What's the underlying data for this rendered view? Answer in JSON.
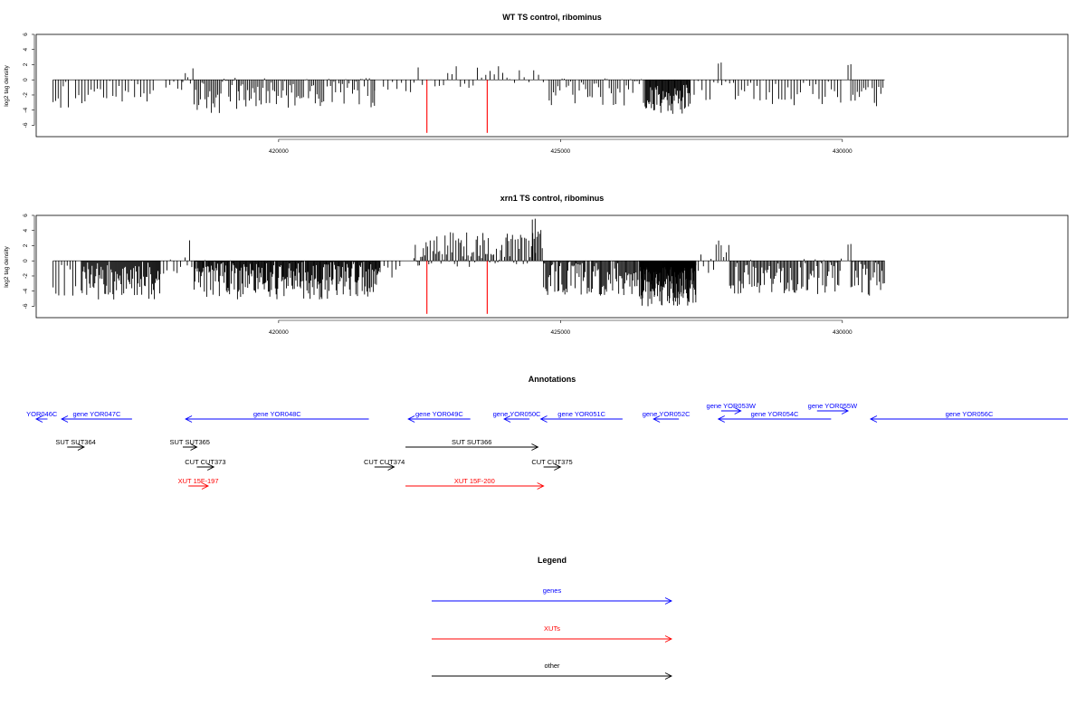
{
  "chart_data": [
    {
      "type": "bar",
      "title": "WT TS control, ribominus",
      "ylabel": "log2 tag density",
      "xlabel": "",
      "ylim": [
        -7.5,
        6
      ],
      "yticks": [
        -6,
        -4,
        -2,
        0,
        2,
        4,
        6
      ],
      "xlim": [
        415700,
        434000
      ],
      "xticks": [
        420000,
        425000,
        430000
      ],
      "baseline": [
        416000,
        430750
      ],
      "highlight_color": "#ff0000",
      "highlight_bars": [
        [
          422630,
          -7.0
        ],
        [
          423700,
          -7.0
        ]
      ],
      "regions": [
        {
          "x": [
            416000,
            416300
          ],
          "mean": -1.8,
          "amp": 2.2,
          "step": 45,
          "seed": 11
        },
        {
          "x": [
            416400,
            417800
          ],
          "mean": -1.6,
          "amp": 1.6,
          "step": 55,
          "seed": 12
        },
        {
          "x": [
            418000,
            418300
          ],
          "mean": -0.6,
          "amp": 0.8,
          "step": 70,
          "seed": 13
        },
        {
          "x": [
            418300,
            418500
          ],
          "mean": 0.7,
          "amp": 1.9,
          "step": 45,
          "seed": 14
        },
        {
          "x": [
            418500,
            419300
          ],
          "mean": -2.0,
          "amp": 2.4,
          "step": 28,
          "seed": 15
        },
        {
          "x": [
            419300,
            421700
          ],
          "mean": -1.7,
          "amp": 2.0,
          "step": 30,
          "seed": 16
        },
        {
          "x": [
            421700,
            422400
          ],
          "mean": -0.8,
          "amp": 1.2,
          "step": 80,
          "seed": 17
        },
        {
          "x": [
            422400,
            424100
          ],
          "mean": 0.4,
          "amp": 1.5,
          "step": 75,
          "seed": 18
        },
        {
          "x": [
            424100,
            424800
          ],
          "mean": 0.6,
          "amp": 1.0,
          "step": 85,
          "seed": 19
        },
        {
          "x": [
            424800,
            426500
          ],
          "mean": -1.7,
          "amp": 2.0,
          "step": 38,
          "seed": 20
        },
        {
          "x": [
            426500,
            427300
          ],
          "mean": -2.5,
          "amp": 2.0,
          "step": 14,
          "seed": 21
        },
        {
          "x": [
            427300,
            428100
          ],
          "mean": -1.3,
          "amp": 1.5,
          "step": 70,
          "seed": 22
        },
        {
          "x": [
            427800,
            427850
          ],
          "mean": 2.2,
          "amp": 0.1,
          "step": 50,
          "seed": 29
        },
        {
          "x": [
            428100,
            430000
          ],
          "mean": -1.6,
          "amp": 1.9,
          "step": 55,
          "seed": 23
        },
        {
          "x": [
            430100,
            430150
          ],
          "mean": 2.0,
          "amp": 0.1,
          "step": 50,
          "seed": 28
        },
        {
          "x": [
            430150,
            430750
          ],
          "mean": -1.8,
          "amp": 1.9,
          "step": 38,
          "seed": 24
        }
      ]
    },
    {
      "type": "bar",
      "title": "xrn1 TS control, ribominus",
      "ylabel": "log2 tag density",
      "xlabel": "",
      "ylim": [
        -7.5,
        6
      ],
      "yticks": [
        -6,
        -4,
        -2,
        0,
        2,
        4,
        6
      ],
      "xlim": [
        415700,
        434000
      ],
      "xticks": [
        420000,
        425000,
        430000
      ],
      "baseline": [
        416000,
        430750
      ],
      "highlight_color": "#ff0000",
      "highlight_bars": [
        [
          422630,
          -7.0
        ],
        [
          423700,
          -7.0
        ]
      ],
      "regions": [
        {
          "x": [
            416000,
            416400
          ],
          "mean": -2.2,
          "amp": 2.6,
          "step": 50,
          "seed": 31
        },
        {
          "x": [
            416500,
            417900
          ],
          "mean": -2.6,
          "amp": 2.6,
          "step": 16,
          "seed": 32
        },
        {
          "x": [
            417900,
            418300
          ],
          "mean": -1.0,
          "amp": 1.5,
          "step": 60,
          "seed": 33
        },
        {
          "x": [
            418300,
            418500
          ],
          "mean": 1.0,
          "amp": 2.0,
          "step": 40,
          "seed": 34
        },
        {
          "x": [
            418500,
            421800
          ],
          "mean": -2.5,
          "amp": 2.6,
          "step": 14,
          "seed": 35
        },
        {
          "x": [
            421800,
            422200
          ],
          "mean": -0.8,
          "amp": 1.4,
          "step": 70,
          "seed": 36
        },
        {
          "x": [
            422400,
            424100
          ],
          "mean": 1.5,
          "amp": 2.3,
          "step": 24,
          "seed": 37
        },
        {
          "x": [
            424100,
            424700
          ],
          "mean": 1.8,
          "amp": 2.4,
          "step": 24,
          "seed": 38
        },
        {
          "x": [
            424500,
            424550
          ],
          "mean": 5.5,
          "amp": 0.1,
          "step": 50,
          "seed": 39
        },
        {
          "x": [
            424700,
            426400
          ],
          "mean": -2.3,
          "amp": 2.4,
          "step": 18,
          "seed": 40
        },
        {
          "x": [
            426400,
            427400
          ],
          "mean": -3.4,
          "amp": 2.6,
          "step": 8,
          "seed": 41
        },
        {
          "x": [
            427400,
            428000
          ],
          "mean": 0.5,
          "amp": 2.2,
          "step": 45,
          "seed": 42
        },
        {
          "x": [
            428000,
            430000
          ],
          "mean": -2.1,
          "amp": 2.4,
          "step": 22,
          "seed": 43
        },
        {
          "x": [
            430100,
            430150
          ],
          "mean": 2.2,
          "amp": 0.1,
          "step": 50,
          "seed": 48
        },
        {
          "x": [
            430150,
            430750
          ],
          "mean": -2.3,
          "amp": 2.4,
          "step": 22,
          "seed": 44
        }
      ]
    }
  ],
  "annotations": {
    "title": "Annotations",
    "features": [
      {
        "label": "YOR046C",
        "color": "#0000ff",
        "from": 415700,
        "to": 415900,
        "dir": "left",
        "row": 1
      },
      {
        "label": "gene YOR047C",
        "color": "#0000ff",
        "from": 416150,
        "to": 417400,
        "dir": "left",
        "row": 1
      },
      {
        "label": "gene YOR048C",
        "color": "#0000ff",
        "from": 418350,
        "to": 421600,
        "dir": "left",
        "row": 1
      },
      {
        "label": "gene YOR049C",
        "color": "#0000ff",
        "from": 422300,
        "to": 423400,
        "dir": "left",
        "row": 1
      },
      {
        "label": "gene YOR050C",
        "color": "#0000ff",
        "from": 424000,
        "to": 424450,
        "dir": "left",
        "row": 1
      },
      {
        "label": "gene YOR051C",
        "color": "#0000ff",
        "from": 424650,
        "to": 426100,
        "dir": "left",
        "row": 1
      },
      {
        "label": "gene YOR052C",
        "color": "#0000ff",
        "from": 426650,
        "to": 427100,
        "dir": "left",
        "row": 1
      },
      {
        "label": "gene YOR053W",
        "color": "#0000ff",
        "from": 427850,
        "to": 428200,
        "dir": "right",
        "row": 0
      },
      {
        "label": "gene YOR054C",
        "color": "#0000ff",
        "from": 427800,
        "to": 429800,
        "dir": "left",
        "row": 1
      },
      {
        "label": "gene YOR055W",
        "color": "#0000ff",
        "from": 429550,
        "to": 430100,
        "dir": "right",
        "row": 0
      },
      {
        "label": "gene YOR056C",
        "color": "#0000ff",
        "from": 430500,
        "to": 434000,
        "dir": "left",
        "row": 1
      },
      {
        "label": "SUT SUT364",
        "color": "#000000",
        "from": 416250,
        "to": 416550,
        "dir": "right",
        "row": 2
      },
      {
        "label": "SUT SUT365",
        "color": "#000000",
        "from": 418300,
        "to": 418550,
        "dir": "right",
        "row": 2
      },
      {
        "label": "SUT SUT366",
        "color": "#000000",
        "from": 422250,
        "to": 424600,
        "dir": "right",
        "row": 2
      },
      {
        "label": "CUT CUT373",
        "color": "#000000",
        "from": 418550,
        "to": 418850,
        "dir": "right",
        "row": 3
      },
      {
        "label": "CUT CUT374",
        "color": "#000000",
        "from": 421700,
        "to": 422050,
        "dir": "right",
        "row": 3
      },
      {
        "label": "CUT CUT375",
        "color": "#000000",
        "from": 424700,
        "to": 425000,
        "dir": "right",
        "row": 3
      },
      {
        "label": "XUT 15F-197",
        "color": "#ff0000",
        "from": 418400,
        "to": 418750,
        "dir": "right",
        "row": 4
      },
      {
        "label": "XUT 15F-200",
        "color": "#ff0000",
        "from": 422250,
        "to": 424700,
        "dir": "right",
        "row": 4
      }
    ]
  },
  "legend": {
    "title": "Legend",
    "items": [
      {
        "label": "genes",
        "color": "#0000ff"
      },
      {
        "label": "XUTs",
        "color": "#ff0000"
      },
      {
        "label": "other",
        "color": "#000000"
      }
    ]
  }
}
